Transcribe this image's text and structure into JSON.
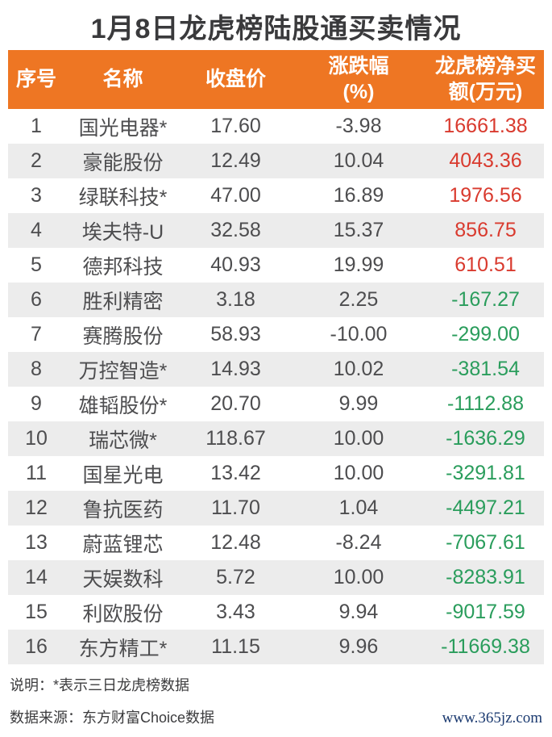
{
  "title": "1月8日龙虎榜陆股通买卖情况",
  "colors": {
    "header_bg": "#ee7623",
    "positive": "#d93a2e",
    "negative": "#2a9d5c",
    "link": "#1b3a70"
  },
  "table": {
    "columns": [
      "序号",
      "名称",
      "收盘价",
      "涨跌幅\n(%)",
      "龙虎榜净买\n额(万元)"
    ],
    "rows": [
      {
        "no": "1",
        "name": "国光电器*",
        "close": "17.60",
        "change": "-3.98",
        "net": "16661.38"
      },
      {
        "no": "2",
        "name": "豪能股份",
        "close": "12.49",
        "change": "10.04",
        "net": "4043.36"
      },
      {
        "no": "3",
        "name": "绿联科技*",
        "close": "47.00",
        "change": "16.89",
        "net": "1976.56"
      },
      {
        "no": "4",
        "name": "埃夫特-U",
        "close": "32.58",
        "change": "15.37",
        "net": "856.75"
      },
      {
        "no": "5",
        "name": "德邦科技",
        "close": "40.93",
        "change": "19.99",
        "net": "610.51"
      },
      {
        "no": "6",
        "name": "胜利精密",
        "close": "3.18",
        "change": "2.25",
        "net": "-167.27"
      },
      {
        "no": "7",
        "name": "赛腾股份",
        "close": "58.93",
        "change": "-10.00",
        "net": "-299.00"
      },
      {
        "no": "8",
        "name": "万控智造*",
        "close": "14.93",
        "change": "10.02",
        "net": "-381.54"
      },
      {
        "no": "9",
        "name": "雄韬股份*",
        "close": "20.70",
        "change": "9.99",
        "net": "-1112.88"
      },
      {
        "no": "10",
        "name": "瑞芯微*",
        "close": "118.67",
        "change": "10.00",
        "net": "-1636.29"
      },
      {
        "no": "11",
        "name": "国星光电",
        "close": "13.42",
        "change": "10.00",
        "net": "-3291.81"
      },
      {
        "no": "12",
        "name": "鲁抗医药",
        "close": "11.70",
        "change": "1.04",
        "net": "-4497.21"
      },
      {
        "no": "13",
        "name": "蔚蓝锂芯",
        "close": "12.48",
        "change": "-8.24",
        "net": "-7067.61"
      },
      {
        "no": "14",
        "name": "天娱数科",
        "close": "5.72",
        "change": "10.00",
        "net": "-8283.91"
      },
      {
        "no": "15",
        "name": "利欧股份",
        "close": "3.43",
        "change": "9.94",
        "net": "-9017.59"
      },
      {
        "no": "16",
        "name": "东方精工*",
        "close": "11.15",
        "change": "9.96",
        "net": "-11669.38"
      }
    ]
  },
  "footer": {
    "note": "说明：*表示三日龙虎榜数据",
    "source": "数据来源：东方财富Choice数据",
    "site": "www.365jz.com"
  },
  "chart_data": {
    "type": "table",
    "title": "1月8日龙虎榜陆股通买卖情况",
    "columns": [
      "序号",
      "名称",
      "收盘价",
      "涨跌幅(%)",
      "龙虎榜净买额(万元)"
    ],
    "rows": [
      [
        1,
        "国光电器*",
        17.6,
        -3.98,
        16661.38
      ],
      [
        2,
        "豪能股份",
        12.49,
        10.04,
        4043.36
      ],
      [
        3,
        "绿联科技*",
        47.0,
        16.89,
        1976.56
      ],
      [
        4,
        "埃夫特-U",
        32.58,
        15.37,
        856.75
      ],
      [
        5,
        "德邦科技",
        40.93,
        19.99,
        610.51
      ],
      [
        6,
        "胜利精密",
        3.18,
        2.25,
        -167.27
      ],
      [
        7,
        "赛腾股份",
        58.93,
        -10.0,
        -299.0
      ],
      [
        8,
        "万控智造*",
        14.93,
        10.02,
        -381.54
      ],
      [
        9,
        "雄韬股份*",
        20.7,
        9.99,
        -1112.88
      ],
      [
        10,
        "瑞芯微*",
        118.67,
        10.0,
        -1636.29
      ],
      [
        11,
        "国星光电",
        13.42,
        10.0,
        -3291.81
      ],
      [
        12,
        "鲁抗医药",
        11.7,
        1.04,
        -4497.21
      ],
      [
        13,
        "蔚蓝锂芯",
        12.48,
        -8.24,
        -7067.61
      ],
      [
        14,
        "天娱数科",
        5.72,
        10.0,
        -8283.91
      ],
      [
        15,
        "利欧股份",
        3.43,
        9.94,
        -9017.59
      ],
      [
        16,
        "东方精工*",
        11.15,
        9.96,
        -11669.38
      ]
    ],
    "value_color_rule": "net>=0 red, net<0 green",
    "annotations": [
      "说明：*表示三日龙虎榜数据",
      "数据来源：东方财富Choice数据",
      "www.365jz.com"
    ]
  }
}
